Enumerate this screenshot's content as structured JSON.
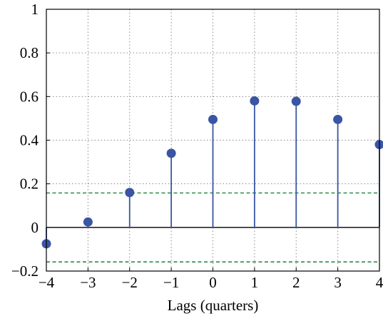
{
  "chart_data": {
    "type": "stem",
    "title": "",
    "xlabel": "Lags (quarters)",
    "ylabel": "",
    "x": [
      -4,
      -3,
      -2,
      -1,
      0,
      1,
      2,
      3,
      4
    ],
    "values": [
      -0.075,
      0.025,
      0.16,
      0.34,
      0.495,
      0.58,
      0.578,
      0.495,
      0.38
    ],
    "xlim": [
      -4,
      4
    ],
    "ylim": [
      -0.2,
      1
    ],
    "xticks": [
      "−4",
      "−3",
      "−2",
      "−1",
      "0",
      "1",
      "2",
      "3",
      "4"
    ],
    "yticks": [
      "−0.2",
      "0",
      "0.2",
      "0.4",
      "0.6",
      "0.8",
      "1"
    ],
    "ytick_values": [
      -0.2,
      0,
      0.2,
      0.4,
      0.6,
      0.8,
      1
    ],
    "confidence_bounds": [
      0.158,
      -0.158
    ],
    "grid": true,
    "colors": {
      "stem": "#3a55a4",
      "bounds": "#2e8b46",
      "grid": "#8a8a8a",
      "zero_line": "#000000"
    }
  }
}
